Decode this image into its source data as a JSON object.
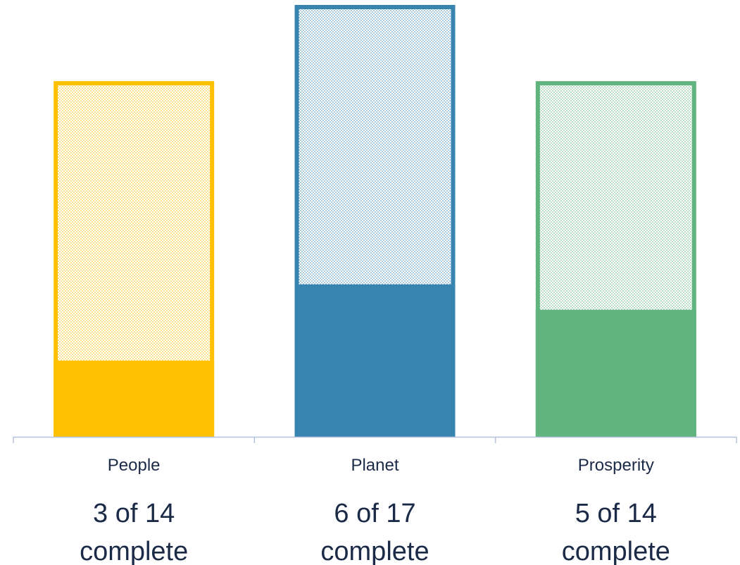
{
  "chart_data": {
    "type": "bar",
    "categories": [
      "People",
      "Planet",
      "Prosperity"
    ],
    "completed": [
      3,
      6,
      5
    ],
    "totals": [
      14,
      17,
      14
    ],
    "status_labels": [
      [
        "3 of 14",
        "complete"
      ],
      [
        "6 of 17",
        "complete"
      ],
      [
        "5 of 14",
        "complete"
      ]
    ],
    "colors": [
      "#FFC000",
      "#3784B0",
      "#61B47E"
    ],
    "axis_color": "#B4C3DC",
    "pattern": "dotted",
    "grid": false,
    "legend": "none",
    "title": "",
    "xlabel": "",
    "ylabel": ""
  }
}
